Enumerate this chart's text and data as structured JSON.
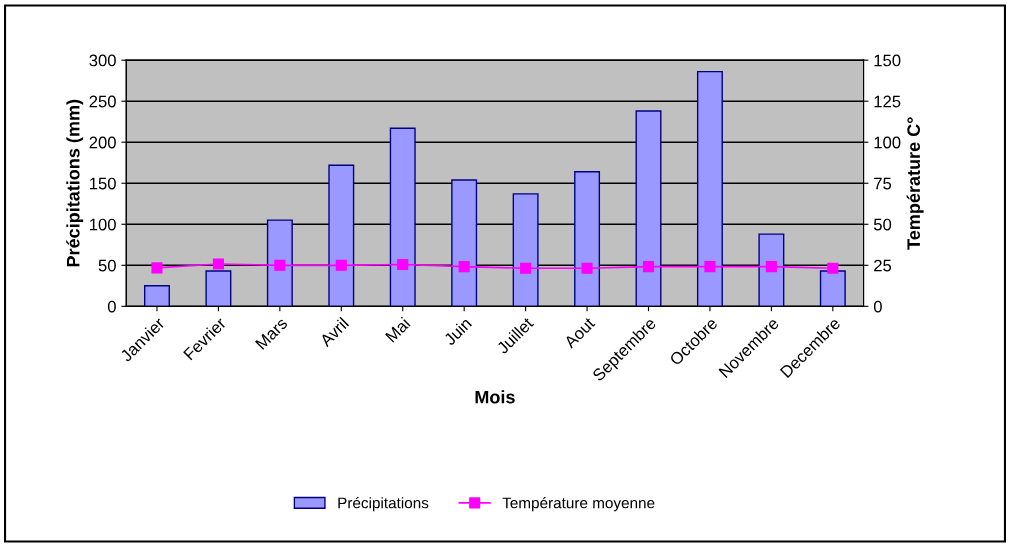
{
  "chart_data": {
    "type": "bar",
    "xlabel": "Mois",
    "ylabel": "Précipitations (mm)",
    "y2label": "Température C°",
    "categories": [
      "Janvier",
      "Fevrier",
      "Mars",
      "Avril",
      "Mai",
      "Juin",
      "Juillet",
      "Aout",
      "Septembre",
      "Octobre",
      "Novembre",
      "Decembre"
    ],
    "series": [
      {
        "name": "Précipitations",
        "color": "#9999ff",
        "values": [
          25,
          43,
          105,
          172,
          217,
          154,
          137,
          164,
          238,
          286,
          88,
          43
        ]
      },
      {
        "name": "Température moyenne",
        "type": "line",
        "axis": "y2",
        "color": "#ff00ff",
        "marker": "square",
        "values": [
          23.4,
          25.8,
          25,
          25,
          25.5,
          24.2,
          23.2,
          23.2,
          24.2,
          24.2,
          24.2,
          23.2
        ]
      }
    ],
    "ylim": [
      0,
      300
    ],
    "yticks": [
      0,
      50,
      100,
      150,
      200,
      250,
      300
    ],
    "y2lim": [
      0,
      150
    ],
    "y2ticks": [
      0,
      25,
      50,
      75,
      100,
      125,
      150
    ],
    "grid": "y",
    "legend": "bottom"
  }
}
